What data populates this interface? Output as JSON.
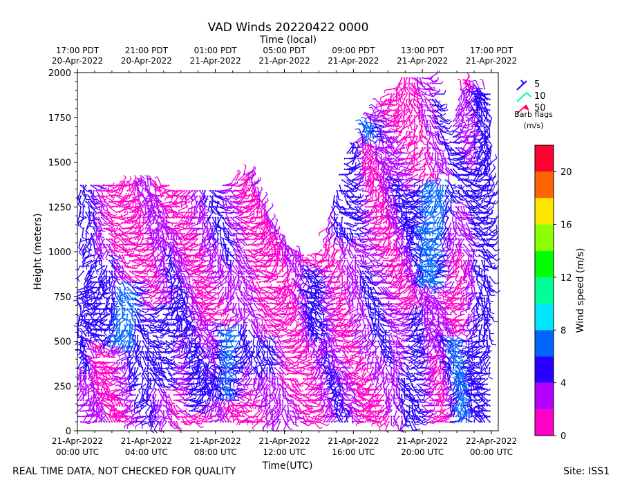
{
  "chart_data": {
    "type": "wind-barb-time-height",
    "title": "VAD Winds 20220422 0000",
    "top_axis_label": "Time (local)",
    "xlabel": "Time(UTC)",
    "ylabel": "Height (meters)",
    "x_range": [
      "2022-04-21T00:00Z",
      "2022-04-22T00:24Z"
    ],
    "ylim": [
      0,
      2000
    ],
    "y_ticks": [
      "0",
      "250",
      "500",
      "750",
      "1000",
      "1250",
      "1500",
      "1750",
      "2000"
    ],
    "x_ticks_utc": [
      {
        "line1": "21-Apr-2022",
        "line2": "00:00 UTC"
      },
      {
        "line1": "21-Apr-2022",
        "line2": "04:00 UTC"
      },
      {
        "line1": "21-Apr-2022",
        "line2": "08:00 UTC"
      },
      {
        "line1": "21-Apr-2022",
        "line2": "12:00 UTC"
      },
      {
        "line1": "21-Apr-2022",
        "line2": "16:00 UTC"
      },
      {
        "line1": "21-Apr-2022",
        "line2": "20:00 UTC"
      },
      {
        "line1": "22-Apr-2022",
        "line2": "00:00 UTC"
      }
    ],
    "x_ticks_local": [
      {
        "line1": "17:00 PDT",
        "line2": "20-Apr-2022"
      },
      {
        "line1": "21:00 PDT",
        "line2": "20-Apr-2022"
      },
      {
        "line1": "01:00 PDT",
        "line2": "21-Apr-2022"
      },
      {
        "line1": "05:00 PDT",
        "line2": "21-Apr-2022"
      },
      {
        "line1": "09:00 PDT",
        "line2": "21-Apr-2022"
      },
      {
        "line1": "13:00 PDT",
        "line2": "21-Apr-2022"
      },
      {
        "line1": "17:00 PDT",
        "line2": "21-Apr-2022"
      }
    ],
    "barb_legend": {
      "items": [
        {
          "label": "5",
          "color": "#0000ff"
        },
        {
          "label": "10",
          "color": "#00ffa0"
        },
        {
          "label": "50",
          "color": "#ff0040"
        }
      ],
      "caption_line1": "Barb flags",
      "caption_line2": "(m/s)"
    },
    "colorbar": {
      "label": "Wind speed (m/s)",
      "range": [
        0,
        22
      ],
      "bounds": [
        0,
        2,
        4,
        6,
        8,
        10,
        12,
        14,
        16,
        18,
        20,
        22
      ],
      "tick_labels": [
        "0",
        "4",
        "8",
        "12",
        "16",
        "20"
      ],
      "colors": [
        "#ff00c8",
        "#b400ff",
        "#2800ff",
        "#0064ff",
        "#00e6ff",
        "#00ff96",
        "#00ff00",
        "#8cff00",
        "#ffe600",
        "#ff6400",
        "#ff0032"
      ]
    },
    "speed_regions": [
      {
        "time_h": 0.3,
        "heights": [
          300,
          1400
        ],
        "speed": 5
      },
      {
        "time_h": 1.5,
        "heights": [
          500,
          1000
        ],
        "speed": 5
      },
      {
        "time_h": 2.8,
        "heights": [
          500,
          850
        ],
        "speed": 7
      },
      {
        "time_h": 4.8,
        "heights": [
          250,
          700
        ],
        "speed": 6
      },
      {
        "time_h": 6.8,
        "heights": [
          100,
          450
        ],
        "speed": 5
      },
      {
        "time_h": 9.0,
        "heights": [
          150,
          600
        ],
        "speed": 7
      },
      {
        "time_h": 10.8,
        "heights": [
          350,
          550
        ],
        "speed": 5
      },
      {
        "time_h": 14.0,
        "heights": [
          500,
          900
        ],
        "speed": 5
      },
      {
        "time_h": 15.6,
        "heights": [
          1100,
          1600
        ],
        "speed": 6
      },
      {
        "time_h": 17.0,
        "heights": [
          1600,
          1700
        ],
        "speed": 7
      },
      {
        "time_h": 19.5,
        "heights": [
          50,
          650
        ],
        "speed": 5
      },
      {
        "time_h": 20.8,
        "heights": [
          800,
          1400
        ],
        "speed": 8
      },
      {
        "time_h": 22.3,
        "heights": [
          50,
          500
        ],
        "speed": 7
      },
      {
        "time_h": 23.5,
        "heights": [
          50,
          1900
        ],
        "speed": 5
      }
    ],
    "data_envelope": [
      {
        "time_h": 0.0,
        "top": 1400
      },
      {
        "time_h": 4.0,
        "top": 1380
      },
      {
        "time_h": 8.0,
        "top": 1350
      },
      {
        "time_h": 10.0,
        "top": 1450
      },
      {
        "time_h": 12.0,
        "top": 1050
      },
      {
        "time_h": 14.0,
        "top": 950
      },
      {
        "time_h": 15.3,
        "top": 1500
      },
      {
        "time_h": 17.0,
        "top": 1750
      },
      {
        "time_h": 19.0,
        "top": 2000
      },
      {
        "time_h": 20.5,
        "top": 2000
      },
      {
        "time_h": 21.5,
        "top": 1600
      },
      {
        "time_h": 22.3,
        "top": 1950
      },
      {
        "time_h": 24.0,
        "top": 1900
      }
    ]
  },
  "footer": {
    "left_note": "REAL TIME DATA, NOT CHECKED FOR QUALITY",
    "site": "Site: ISS1"
  }
}
